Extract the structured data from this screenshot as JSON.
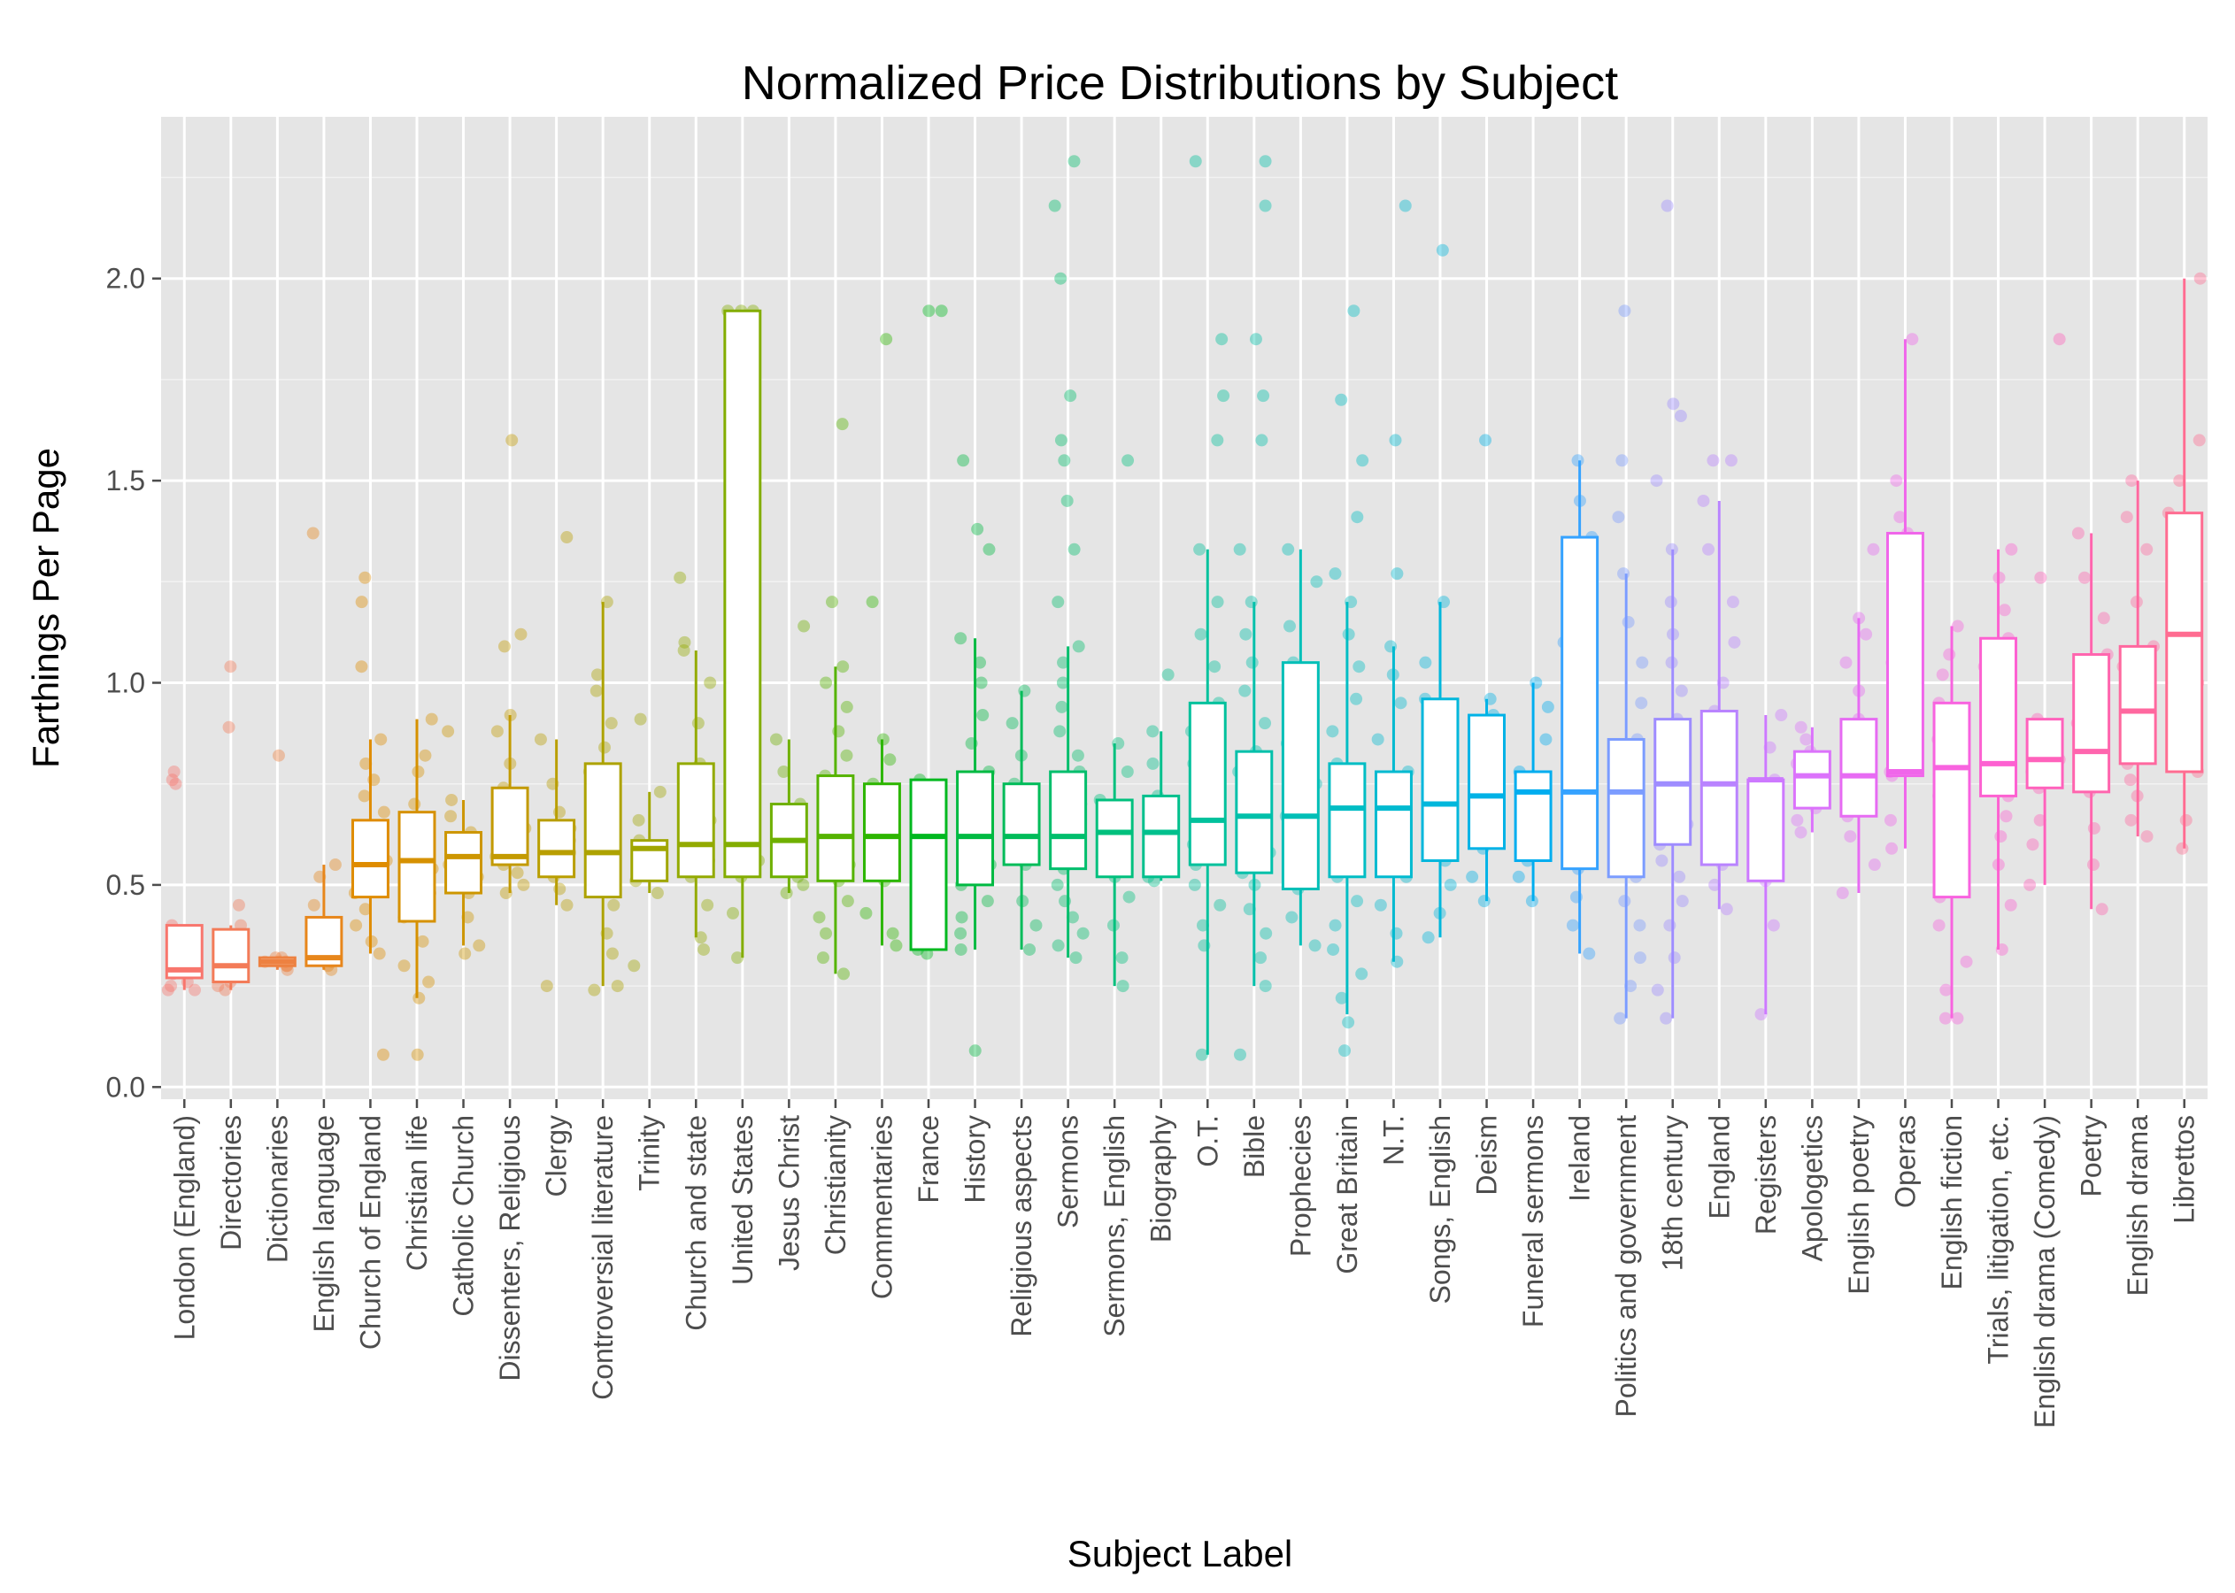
{
  "chart_data": {
    "type": "box",
    "title": "Normalized Price Distributions by Subject",
    "xlabel": "Subject Label",
    "ylabel": "Farthings Per Page",
    "ylim": [
      -0.03,
      2.4
    ],
    "yticks": [
      0.0,
      0.5,
      1.0,
      1.5,
      2.0
    ],
    "ytick_labels": [
      "0.0",
      "0.5",
      "1.0",
      "1.5",
      "2.0"
    ],
    "grid": true,
    "legend": "none",
    "background": "#E5E5E5",
    "categories": [
      {
        "label": "London (England)",
        "color": "#F8766D",
        "whislo": 0.24,
        "q1": 0.27,
        "med": 0.29,
        "q3": 0.4,
        "whishi": 0.4,
        "points": [
          0.24,
          0.24,
          0.25,
          0.26,
          0.28,
          0.3,
          0.33,
          0.37,
          0.4,
          0.75,
          0.76,
          0.78
        ]
      },
      {
        "label": "Directories",
        "color": "#F37B58",
        "whislo": 0.24,
        "q1": 0.26,
        "med": 0.3,
        "q3": 0.39,
        "whishi": 0.4,
        "points": [
          0.24,
          0.25,
          0.26,
          0.28,
          0.31,
          0.33,
          0.36,
          0.4,
          0.45,
          0.89,
          1.04
        ]
      },
      {
        "label": "Dictionaries",
        "color": "#ED8141",
        "whislo": 0.29,
        "q1": 0.3,
        "med": 0.31,
        "q3": 0.32,
        "whishi": 0.32,
        "points": [
          0.29,
          0.3,
          0.3,
          0.31,
          0.31,
          0.31,
          0.32,
          0.32,
          0.82
        ]
      },
      {
        "label": "English language",
        "color": "#E7861B",
        "whislo": 0.29,
        "q1": 0.3,
        "med": 0.32,
        "q3": 0.42,
        "whishi": 0.55,
        "points": [
          0.29,
          0.3,
          0.31,
          0.33,
          0.35,
          0.4,
          0.45,
          0.52,
          0.55,
          1.37
        ]
      },
      {
        "label": "Church of England",
        "color": "#DF8C00",
        "whislo": 0.33,
        "q1": 0.47,
        "med": 0.55,
        "q3": 0.66,
        "whishi": 0.86,
        "points": [
          0.08,
          0.33,
          0.36,
          0.4,
          0.44,
          0.48,
          0.52,
          0.56,
          0.6,
          0.64,
          0.68,
          0.72,
          0.76,
          0.8,
          0.86,
          1.04,
          1.2,
          1.26
        ]
      },
      {
        "label": "Christian life",
        "color": "#D69100",
        "whislo": 0.22,
        "q1": 0.41,
        "med": 0.56,
        "q3": 0.68,
        "whishi": 0.91,
        "points": [
          0.08,
          0.22,
          0.26,
          0.3,
          0.36,
          0.42,
          0.48,
          0.54,
          0.6,
          0.66,
          0.7,
          0.78,
          0.82,
          0.91
        ]
      },
      {
        "label": "Catholic Church",
        "color": "#CD9600",
        "whislo": 0.35,
        "q1": 0.48,
        "med": 0.57,
        "q3": 0.63,
        "whishi": 0.71,
        "points": [
          0.33,
          0.35,
          0.42,
          0.48,
          0.52,
          0.55,
          0.58,
          0.61,
          0.63,
          0.67,
          0.71,
          0.88
        ]
      },
      {
        "label": "Dissenters, Religious",
        "color": "#C39A00",
        "whislo": 0.48,
        "q1": 0.55,
        "med": 0.57,
        "q3": 0.74,
        "whishi": 0.92,
        "points": [
          0.48,
          0.5,
          0.53,
          0.55,
          0.57,
          0.6,
          0.64,
          0.7,
          0.74,
          0.8,
          0.88,
          0.92,
          1.09,
          1.12,
          1.6
        ]
      },
      {
        "label": "Clergy",
        "color": "#B99E00",
        "whislo": 0.45,
        "q1": 0.52,
        "med": 0.58,
        "q3": 0.66,
        "whishi": 0.86,
        "points": [
          0.25,
          0.45,
          0.49,
          0.52,
          0.55,
          0.58,
          0.61,
          0.64,
          0.68,
          0.75,
          0.86,
          1.36
        ]
      },
      {
        "label": "Controversial literature",
        "color": "#ADA200",
        "whislo": 0.25,
        "q1": 0.47,
        "med": 0.58,
        "q3": 0.8,
        "whishi": 1.2,
        "points": [
          0.24,
          0.25,
          0.33,
          0.38,
          0.45,
          0.5,
          0.55,
          0.6,
          0.66,
          0.72,
          0.78,
          0.84,
          0.9,
          0.98,
          1.02,
          1.2
        ]
      },
      {
        "label": "Trinity",
        "color": "#A0A600",
        "whislo": 0.48,
        "q1": 0.51,
        "med": 0.59,
        "q3": 0.61,
        "whishi": 0.73,
        "points": [
          0.3,
          0.48,
          0.51,
          0.55,
          0.59,
          0.61,
          0.66,
          0.73,
          0.91
        ]
      },
      {
        "label": "Church and state",
        "color": "#93AA00",
        "whislo": 0.37,
        "q1": 0.52,
        "med": 0.6,
        "q3": 0.8,
        "whishi": 1.08,
        "points": [
          0.34,
          0.37,
          0.45,
          0.52,
          0.56,
          0.6,
          0.66,
          0.72,
          0.8,
          0.9,
          1.0,
          1.08,
          1.1,
          1.26
        ]
      },
      {
        "label": "United States",
        "color": "#83AD00",
        "whislo": 0.32,
        "q1": 0.52,
        "med": 0.6,
        "q3": 1.92,
        "whishi": 1.92,
        "points": [
          0.32,
          0.43,
          0.52,
          0.56,
          0.6,
          0.75,
          0.9,
          1.2,
          1.92,
          1.92,
          1.92
        ]
      },
      {
        "label": "Jesus Christ",
        "color": "#6FB000",
        "whislo": 0.48,
        "q1": 0.52,
        "med": 0.61,
        "q3": 0.7,
        "whishi": 0.86,
        "points": [
          0.48,
          0.5,
          0.52,
          0.56,
          0.61,
          0.65,
          0.7,
          0.78,
          0.86,
          1.14
        ]
      },
      {
        "label": "Christianity",
        "color": "#55B300",
        "whislo": 0.28,
        "q1": 0.51,
        "med": 0.62,
        "q3": 0.77,
        "whishi": 1.04,
        "points": [
          0.28,
          0.32,
          0.38,
          0.42,
          0.46,
          0.51,
          0.55,
          0.59,
          0.62,
          0.66,
          0.7,
          0.74,
          0.77,
          0.82,
          0.88,
          0.94,
          1.0,
          1.04,
          1.2,
          1.64
        ]
      },
      {
        "label": "Commentaries",
        "color": "#2DB600",
        "whislo": 0.35,
        "q1": 0.51,
        "med": 0.62,
        "q3": 0.75,
        "whishi": 0.86,
        "points": [
          0.35,
          0.38,
          0.43,
          0.51,
          0.56,
          0.62,
          0.68,
          0.75,
          0.81,
          0.86,
          1.2,
          1.85
        ]
      },
      {
        "label": "France",
        "color": "#00B81F",
        "whislo": 0.34,
        "q1": 0.34,
        "med": 0.62,
        "q3": 0.76,
        "whishi": 0.76,
        "points": [
          0.33,
          0.34,
          0.38,
          0.46,
          0.52,
          0.58,
          0.62,
          0.68,
          0.72,
          0.76,
          1.92,
          1.92
        ]
      },
      {
        "label": "History",
        "color": "#00BA42",
        "whislo": 0.34,
        "q1": 0.5,
        "med": 0.62,
        "q3": 0.78,
        "whishi": 1.11,
        "points": [
          0.09,
          0.34,
          0.38,
          0.42,
          0.46,
          0.5,
          0.55,
          0.6,
          0.65,
          0.7,
          0.78,
          0.85,
          0.92,
          1.0,
          1.05,
          1.11,
          1.33,
          1.38,
          1.55
        ]
      },
      {
        "label": "Religious aspects",
        "color": "#00BC59",
        "whislo": 0.34,
        "q1": 0.55,
        "med": 0.62,
        "q3": 0.75,
        "whishi": 0.98,
        "points": [
          0.34,
          0.4,
          0.46,
          0.55,
          0.58,
          0.62,
          0.67,
          0.75,
          0.82,
          0.9,
          0.98
        ]
      },
      {
        "label": "Sermons",
        "color": "#00BE6C",
        "whislo": 0.32,
        "q1": 0.54,
        "med": 0.62,
        "q3": 0.78,
        "whishi": 1.09,
        "points": [
          0.32,
          0.35,
          0.38,
          0.42,
          0.46,
          0.5,
          0.54,
          0.58,
          0.62,
          0.66,
          0.7,
          0.74,
          0.78,
          0.82,
          0.88,
          0.94,
          1.0,
          1.05,
          1.09,
          1.2,
          1.33,
          1.45,
          1.55,
          1.6,
          1.71,
          2.0,
          2.18,
          2.29
        ]
      },
      {
        "label": "Sermons, English",
        "color": "#00C07D",
        "whislo": 0.25,
        "q1": 0.52,
        "med": 0.63,
        "q3": 0.71,
        "whishi": 0.85,
        "points": [
          0.25,
          0.32,
          0.4,
          0.47,
          0.52,
          0.57,
          0.63,
          0.68,
          0.71,
          0.78,
          0.85,
          1.55
        ]
      },
      {
        "label": "Biography",
        "color": "#00C08D",
        "whislo": 0.51,
        "q1": 0.52,
        "med": 0.63,
        "q3": 0.72,
        "whishi": 0.88,
        "points": [
          0.51,
          0.52,
          0.56,
          0.6,
          0.63,
          0.67,
          0.72,
          0.8,
          0.88,
          1.02
        ]
      },
      {
        "label": "O.T.",
        "color": "#00C19C",
        "whislo": 0.08,
        "q1": 0.55,
        "med": 0.66,
        "q3": 0.95,
        "whishi": 1.33,
        "points": [
          0.08,
          0.35,
          0.4,
          0.45,
          0.5,
          0.55,
          0.6,
          0.66,
          0.72,
          0.8,
          0.88,
          0.95,
          1.04,
          1.12,
          1.2,
          1.33,
          1.6,
          1.71,
          1.85,
          2.29
        ]
      },
      {
        "label": "Bible",
        "color": "#00C0AA",
        "whislo": 0.25,
        "q1": 0.53,
        "med": 0.67,
        "q3": 0.83,
        "whishi": 1.2,
        "points": [
          0.08,
          0.25,
          0.32,
          0.38,
          0.44,
          0.5,
          0.53,
          0.58,
          0.63,
          0.67,
          0.72,
          0.78,
          0.83,
          0.9,
          0.98,
          1.05,
          1.12,
          1.2,
          1.33,
          1.6,
          1.71,
          1.85,
          2.18,
          2.29
        ]
      },
      {
        "label": "Prophecies",
        "color": "#00BFB7",
        "whislo": 0.35,
        "q1": 0.49,
        "med": 0.67,
        "q3": 1.05,
        "whishi": 1.33,
        "points": [
          0.35,
          0.42,
          0.49,
          0.58,
          0.67,
          0.75,
          0.85,
          0.95,
          1.05,
          1.14,
          1.25,
          1.33
        ]
      },
      {
        "label": "Great Britain",
        "color": "#00BDC4",
        "whislo": 0.18,
        "q1": 0.52,
        "med": 0.69,
        "q3": 0.8,
        "whishi": 1.2,
        "points": [
          0.09,
          0.16,
          0.22,
          0.28,
          0.34,
          0.4,
          0.46,
          0.52,
          0.57,
          0.62,
          0.69,
          0.74,
          0.8,
          0.88,
          0.96,
          1.04,
          1.12,
          1.2,
          1.27,
          1.41,
          1.55,
          1.7,
          1.92
        ]
      },
      {
        "label": "N.T.",
        "color": "#00BAD0",
        "whislo": 0.31,
        "q1": 0.52,
        "med": 0.69,
        "q3": 0.78,
        "whishi": 1.09,
        "points": [
          0.31,
          0.38,
          0.45,
          0.52,
          0.58,
          0.64,
          0.69,
          0.74,
          0.78,
          0.86,
          0.95,
          1.02,
          1.09,
          1.27,
          1.6,
          2.18
        ]
      },
      {
        "label": "Songs, English",
        "color": "#00B7DC",
        "whislo": 0.37,
        "q1": 0.56,
        "med": 0.7,
        "q3": 0.96,
        "whishi": 1.2,
        "points": [
          0.37,
          0.43,
          0.5,
          0.56,
          0.63,
          0.7,
          0.78,
          0.86,
          0.96,
          1.05,
          1.2,
          2.07
        ]
      },
      {
        "label": "Deism",
        "color": "#00B2E6",
        "whislo": 0.46,
        "q1": 0.59,
        "med": 0.72,
        "q3": 0.92,
        "whishi": 0.96,
        "points": [
          0.46,
          0.52,
          0.59,
          0.65,
          0.72,
          0.8,
          0.86,
          0.92,
          0.96,
          1.6
        ]
      },
      {
        "label": "Funeral sermons",
        "color": "#00ADEF",
        "whislo": 0.46,
        "q1": 0.56,
        "med": 0.73,
        "q3": 0.78,
        "whishi": 1.0,
        "points": [
          0.46,
          0.52,
          0.56,
          0.62,
          0.68,
          0.73,
          0.76,
          0.78,
          0.86,
          0.94,
          1.0
        ]
      },
      {
        "label": "Ireland",
        "color": "#35A2FF",
        "whislo": 0.33,
        "q1": 0.54,
        "med": 0.73,
        "q3": 1.36,
        "whishi": 1.55,
        "points": [
          0.33,
          0.4,
          0.47,
          0.54,
          0.62,
          0.73,
          0.85,
          0.98,
          1.1,
          1.22,
          1.36,
          1.45,
          1.55
        ]
      },
      {
        "label": "Politics and government",
        "color": "#7B9CFF",
        "whislo": 0.17,
        "q1": 0.52,
        "med": 0.73,
        "q3": 0.86,
        "whishi": 1.27,
        "points": [
          0.17,
          0.25,
          0.32,
          0.4,
          0.46,
          0.52,
          0.58,
          0.65,
          0.73,
          0.8,
          0.86,
          0.95,
          1.05,
          1.15,
          1.27,
          1.41,
          1.55,
          1.92
        ]
      },
      {
        "label": "18th century",
        "color": "#9E8CFF",
        "whislo": 0.17,
        "q1": 0.6,
        "med": 0.75,
        "q3": 0.91,
        "whishi": 1.33,
        "points": [
          0.17,
          0.24,
          0.32,
          0.4,
          0.46,
          0.52,
          0.56,
          0.6,
          0.65,
          0.7,
          0.75,
          0.8,
          0.86,
          0.91,
          0.98,
          1.05,
          1.12,
          1.2,
          1.33,
          1.5,
          1.66,
          1.69,
          2.18
        ]
      },
      {
        "label": "England",
        "color": "#B983FF",
        "whislo": 0.44,
        "q1": 0.55,
        "med": 0.75,
        "q3": 0.93,
        "whishi": 1.45,
        "points": [
          0.44,
          0.5,
          0.55,
          0.62,
          0.7,
          0.75,
          0.82,
          0.88,
          0.93,
          1.0,
          1.1,
          1.2,
          1.33,
          1.45,
          1.55,
          1.55
        ]
      },
      {
        "label": "Registers",
        "color": "#CD79FF",
        "whislo": 0.18,
        "q1": 0.51,
        "med": 0.76,
        "q3": 0.76,
        "whishi": 0.92,
        "points": [
          0.18,
          0.4,
          0.51,
          0.6,
          0.68,
          0.76,
          0.84,
          0.92
        ]
      },
      {
        "label": "Apologetics",
        "color": "#DB72FB",
        "whislo": 0.63,
        "q1": 0.69,
        "med": 0.77,
        "q3": 0.83,
        "whishi": 0.89,
        "points": [
          0.63,
          0.66,
          0.69,
          0.72,
          0.77,
          0.8,
          0.83,
          0.86,
          0.89
        ]
      },
      {
        "label": "English poetry",
        "color": "#E76BF3",
        "whislo": 0.48,
        "q1": 0.67,
        "med": 0.77,
        "q3": 0.91,
        "whishi": 1.16,
        "points": [
          0.48,
          0.55,
          0.62,
          0.67,
          0.72,
          0.77,
          0.82,
          0.88,
          0.91,
          0.98,
          1.05,
          1.12,
          1.16,
          1.33
        ]
      },
      {
        "label": "Operas",
        "color": "#F066EA",
        "whislo": 0.59,
        "q1": 0.77,
        "med": 0.78,
        "q3": 1.37,
        "whishi": 1.85,
        "points": [
          0.59,
          0.66,
          0.77,
          0.78,
          0.8,
          0.9,
          1.05,
          1.2,
          1.37,
          1.41,
          1.5,
          1.85
        ]
      },
      {
        "label": "English fiction",
        "color": "#F863DF",
        "whislo": 0.17,
        "q1": 0.47,
        "med": 0.79,
        "q3": 0.95,
        "whishi": 1.14,
        "points": [
          0.17,
          0.17,
          0.24,
          0.31,
          0.4,
          0.47,
          0.56,
          0.65,
          0.72,
          0.79,
          0.86,
          0.95,
          1.02,
          1.07,
          1.14
        ]
      },
      {
        "label": "Trials, litigation, etc.",
        "color": "#FD61D1",
        "whislo": 0.34,
        "q1": 0.72,
        "med": 0.8,
        "q3": 1.11,
        "whishi": 1.33,
        "points": [
          0.34,
          0.45,
          0.55,
          0.62,
          0.67,
          0.72,
          0.76,
          0.8,
          0.86,
          0.95,
          1.04,
          1.11,
          1.18,
          1.26,
          1.33
        ]
      },
      {
        "label": "English drama (Comedy)",
        "color": "#FF62BC",
        "whislo": 0.5,
        "q1": 0.74,
        "med": 0.81,
        "q3": 0.91,
        "whishi": 0.91,
        "points": [
          0.5,
          0.6,
          0.66,
          0.74,
          0.78,
          0.81,
          0.85,
          0.91,
          1.26,
          1.85
        ]
      },
      {
        "label": "Poetry",
        "color": "#FF65AE",
        "whislo": 0.44,
        "q1": 0.73,
        "med": 0.83,
        "q3": 1.07,
        "whishi": 1.37,
        "points": [
          0.44,
          0.55,
          0.64,
          0.73,
          0.78,
          0.83,
          0.9,
          0.98,
          1.07,
          1.16,
          1.26,
          1.37
        ]
      },
      {
        "label": "English drama",
        "color": "#FF689F",
        "whislo": 0.62,
        "q1": 0.8,
        "med": 0.93,
        "q3": 1.09,
        "whishi": 1.5,
        "points": [
          0.62,
          0.66,
          0.72,
          0.76,
          0.8,
          0.86,
          0.93,
          1.0,
          1.04,
          1.09,
          1.2,
          1.33,
          1.41,
          1.5
        ]
      },
      {
        "label": "Librettos",
        "color": "#FF6C91",
        "whislo": 0.59,
        "q1": 0.78,
        "med": 1.12,
        "q3": 1.42,
        "whishi": 2.0,
        "points": [
          0.59,
          0.66,
          0.78,
          0.88,
          1.0,
          1.12,
          1.24,
          1.33,
          1.42,
          1.5,
          1.6,
          2.0
        ]
      }
    ]
  }
}
